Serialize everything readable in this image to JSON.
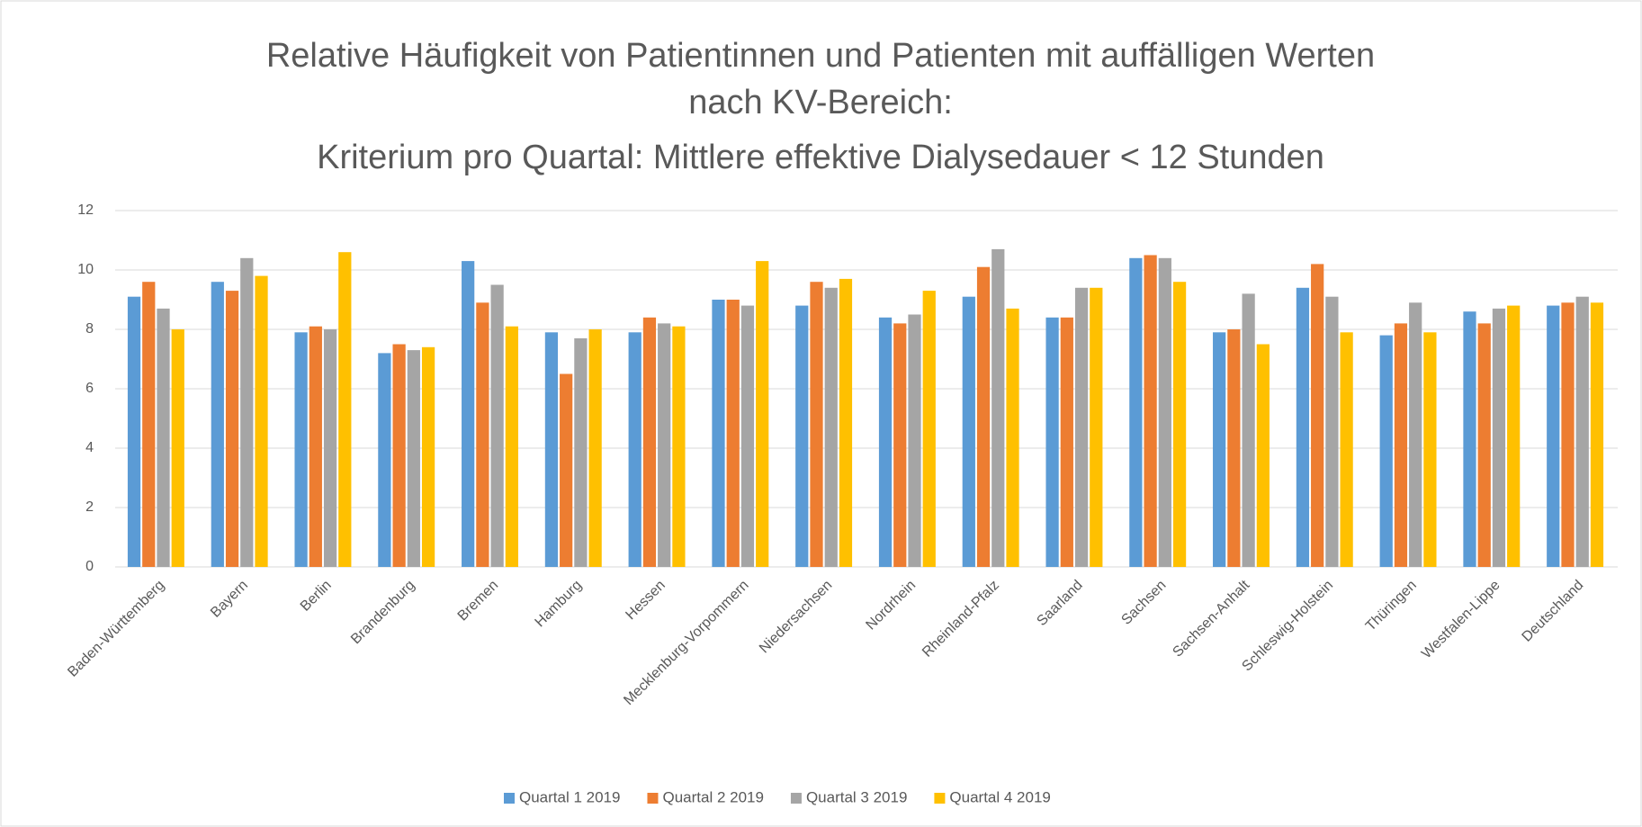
{
  "chart_data": {
    "type": "bar",
    "title": [
      "Relative Häufigkeit von Patientinnen und Patienten mit auffälligen Werten",
      "nach KV-Bereich:",
      "Kriterium pro Quartal: Mittlere effektive Dialysedauer < 12 Stunden"
    ],
    "categories": [
      "Baden-Württemberg",
      "Bayern",
      "Berlin",
      "Brandenburg",
      "Bremen",
      "Hamburg",
      "Hessen",
      "Mecklenburg-Vorpommern",
      "Niedersachsen",
      "Nordrhein",
      "Rheinland-Pfalz",
      "Saarland",
      "Sachsen",
      "Sachsen-Anhalt",
      "Schleswig-Holstein",
      "Thüringen",
      "Westfalen-Lippe",
      "Deutschland"
    ],
    "series": [
      {
        "name": "Quartal 1 2019",
        "color": "#5b9bd5",
        "values": [
          9.1,
          9.6,
          7.9,
          7.2,
          10.3,
          7.9,
          7.9,
          9.0,
          8.8,
          8.4,
          9.1,
          8.4,
          10.4,
          7.9,
          9.4,
          7.8,
          8.6,
          8.8
        ]
      },
      {
        "name": "Quartal 2 2019",
        "color": "#ed7d31",
        "values": [
          9.6,
          9.3,
          8.1,
          7.5,
          8.9,
          6.5,
          8.4,
          9.0,
          9.6,
          8.2,
          10.1,
          8.4,
          10.5,
          8.0,
          10.2,
          8.2,
          8.2,
          8.9
        ]
      },
      {
        "name": "Quartal 3 2019",
        "color": "#a5a5a5",
        "values": [
          8.7,
          10.4,
          8.0,
          7.3,
          9.5,
          7.7,
          8.2,
          8.8,
          9.4,
          8.5,
          10.7,
          9.4,
          10.4,
          9.2,
          9.1,
          8.9,
          8.7,
          9.1
        ]
      },
      {
        "name": "Quartal 4 2019",
        "color": "#ffc000",
        "values": [
          8.0,
          9.8,
          10.6,
          7.4,
          8.1,
          8.0,
          8.1,
          10.3,
          9.7,
          9.3,
          8.7,
          9.4,
          9.6,
          7.5,
          7.9,
          7.9,
          8.8,
          8.9
        ]
      }
    ],
    "ylim": [
      0,
      12
    ],
    "yticks": [
      0,
      2,
      4,
      6,
      8,
      10,
      12
    ],
    "grid": true,
    "legend": "bottom"
  }
}
